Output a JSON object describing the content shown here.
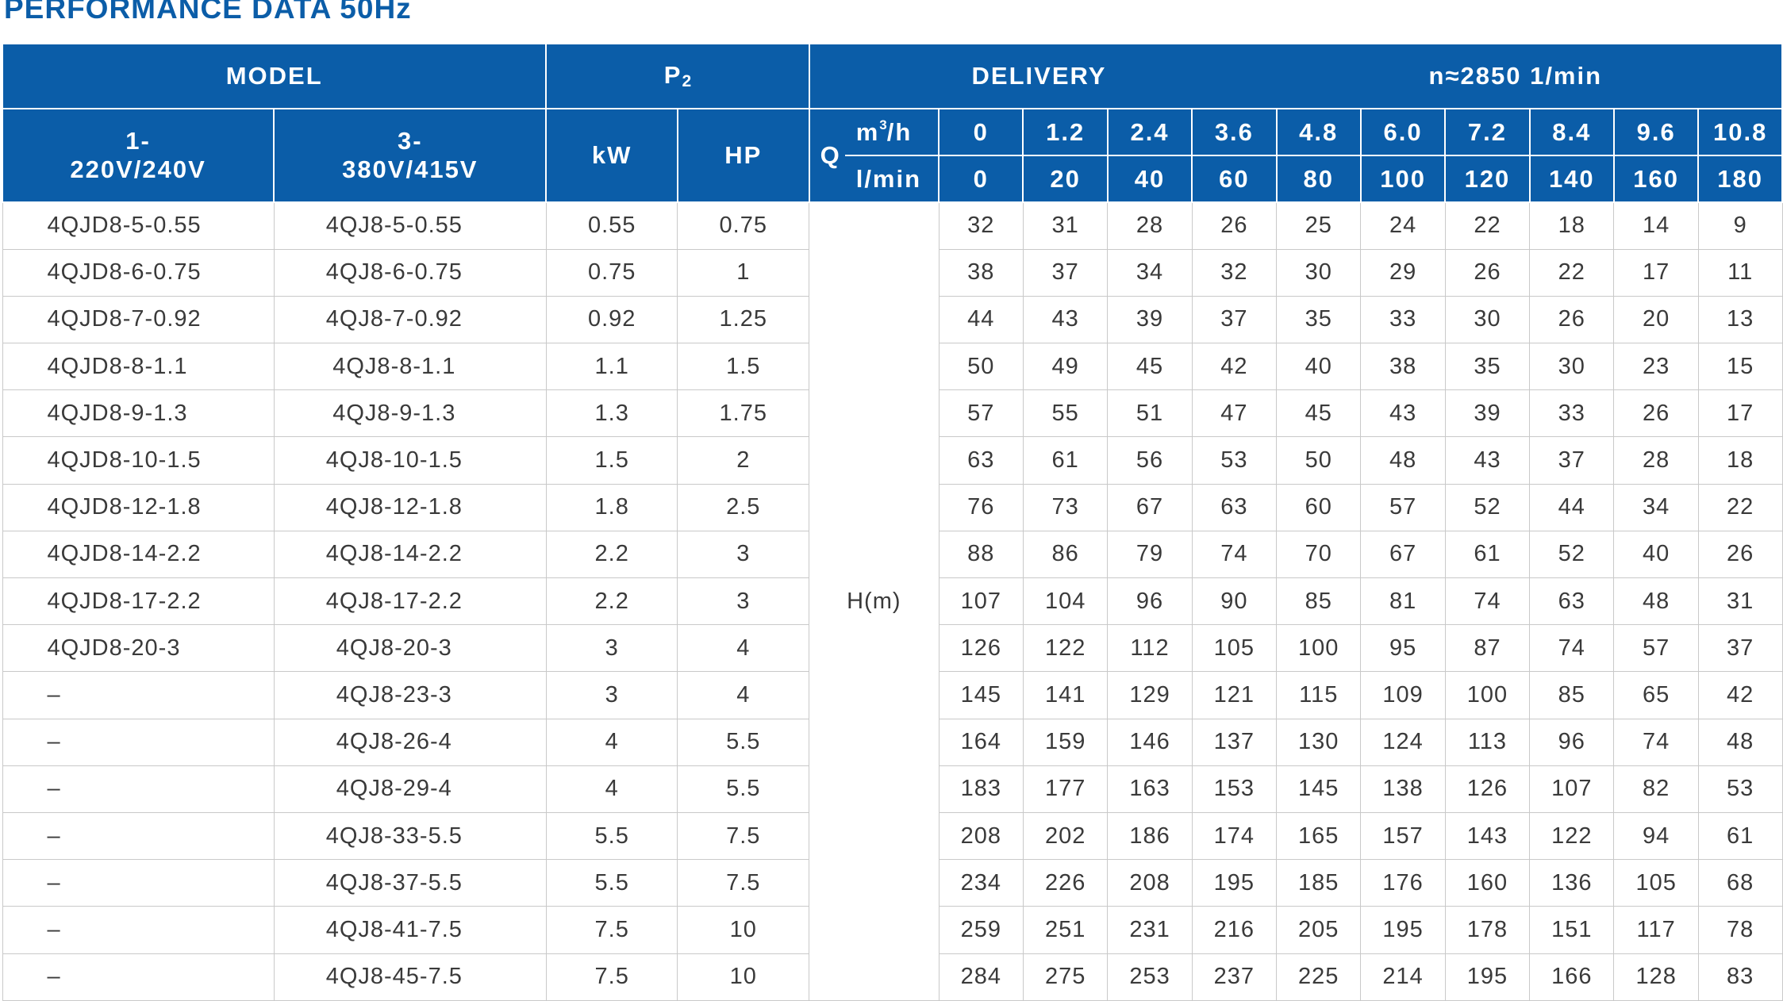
{
  "title": "PERFORMANCE DATA 50Hz",
  "header": {
    "model": "MODEL",
    "p2": "P",
    "p2_sub": "2",
    "delivery": "DELIVERY",
    "speed": "n≈2850  1/min",
    "single_phase": [
      "1-",
      "220V/240V"
    ],
    "three_phase": [
      "3-",
      "380V/415V"
    ],
    "kw": "kW",
    "hp": "HP",
    "q": "Q",
    "unit_m3h": "m",
    "unit_m3h_sup": "3",
    "unit_m3h_rest": "/h",
    "unit_lmin": "l/min",
    "flow_m3h": [
      "0",
      "1.2",
      "2.4",
      "3.6",
      "4.8",
      "6.0",
      "7.2",
      "8.4",
      "9.6",
      "10.8"
    ],
    "flow_lmin": [
      "0",
      "20",
      "40",
      "60",
      "80",
      "100",
      "120",
      "140",
      "160",
      "180"
    ]
  },
  "head_label": "H(m)",
  "rows": [
    {
      "m1": "4QJD8-5-0.55",
      "m3": "4QJ8-5-0.55",
      "kw": "0.55",
      "hp": "0.75",
      "h": [
        "32",
        "31",
        "28",
        "26",
        "25",
        "24",
        "22",
        "18",
        "14",
        "9"
      ]
    },
    {
      "m1": "4QJD8-6-0.75",
      "m3": "4QJ8-6-0.75",
      "kw": "0.75",
      "hp": "1",
      "h": [
        "38",
        "37",
        "34",
        "32",
        "30",
        "29",
        "26",
        "22",
        "17",
        "11"
      ]
    },
    {
      "m1": "4QJD8-7-0.92",
      "m3": "4QJ8-7-0.92",
      "kw": "0.92",
      "hp": "1.25",
      "h": [
        "44",
        "43",
        "39",
        "37",
        "35",
        "33",
        "30",
        "26",
        "20",
        "13"
      ]
    },
    {
      "m1": "4QJD8-8-1.1",
      "m3": "4QJ8-8-1.1",
      "kw": "1.1",
      "hp": "1.5",
      "h": [
        "50",
        "49",
        "45",
        "42",
        "40",
        "38",
        "35",
        "30",
        "23",
        "15"
      ]
    },
    {
      "m1": "4QJD8-9-1.3",
      "m3": "4QJ8-9-1.3",
      "kw": "1.3",
      "hp": "1.75",
      "h": [
        "57",
        "55",
        "51",
        "47",
        "45",
        "43",
        "39",
        "33",
        "26",
        "17"
      ]
    },
    {
      "m1": "4QJD8-10-1.5",
      "m3": "4QJ8-10-1.5",
      "kw": "1.5",
      "hp": "2",
      "h": [
        "63",
        "61",
        "56",
        "53",
        "50",
        "48",
        "43",
        "37",
        "28",
        "18"
      ]
    },
    {
      "m1": "4QJD8-12-1.8",
      "m3": "4QJ8-12-1.8",
      "kw": "1.8",
      "hp": "2.5",
      "h": [
        "76",
        "73",
        "67",
        "63",
        "60",
        "57",
        "52",
        "44",
        "34",
        "22"
      ]
    },
    {
      "m1": "4QJD8-14-2.2",
      "m3": "4QJ8-14-2.2",
      "kw": "2.2",
      "hp": "3",
      "h": [
        "88",
        "86",
        "79",
        "74",
        "70",
        "67",
        "61",
        "52",
        "40",
        "26"
      ]
    },
    {
      "m1": "4QJD8-17-2.2",
      "m3": "4QJ8-17-2.2",
      "kw": "2.2",
      "hp": "3",
      "h": [
        "107",
        "104",
        "96",
        "90",
        "85",
        "81",
        "74",
        "63",
        "48",
        "31"
      ]
    },
    {
      "m1": "4QJD8-20-3",
      "m3": "4QJ8-20-3",
      "kw": "3",
      "hp": "4",
      "h": [
        "126",
        "122",
        "112",
        "105",
        "100",
        "95",
        "87",
        "74",
        "57",
        "37"
      ]
    },
    {
      "m1": "–",
      "m3": "4QJ8-23-3",
      "kw": "3",
      "hp": "4",
      "h": [
        "145",
        "141",
        "129",
        "121",
        "115",
        "109",
        "100",
        "85",
        "65",
        "42"
      ]
    },
    {
      "m1": "–",
      "m3": "4QJ8-26-4",
      "kw": "4",
      "hp": "5.5",
      "h": [
        "164",
        "159",
        "146",
        "137",
        "130",
        "124",
        "113",
        "96",
        "74",
        "48"
      ]
    },
    {
      "m1": "–",
      "m3": "4QJ8-29-4",
      "kw": "4",
      "hp": "5.5",
      "h": [
        "183",
        "177",
        "163",
        "153",
        "145",
        "138",
        "126",
        "107",
        "82",
        "53"
      ]
    },
    {
      "m1": "–",
      "m3": "4QJ8-33-5.5",
      "kw": "5.5",
      "hp": "7.5",
      "h": [
        "208",
        "202",
        "186",
        "174",
        "165",
        "157",
        "143",
        "122",
        "94",
        "61"
      ]
    },
    {
      "m1": "–",
      "m3": "4QJ8-37-5.5",
      "kw": "5.5",
      "hp": "7.5",
      "h": [
        "234",
        "226",
        "208",
        "195",
        "185",
        "176",
        "160",
        "136",
        "105",
        "68"
      ]
    },
    {
      "m1": "–",
      "m3": "4QJ8-41-7.5",
      "kw": "7.5",
      "hp": "10",
      "h": [
        "259",
        "251",
        "231",
        "216",
        "205",
        "195",
        "178",
        "151",
        "117",
        "78"
      ]
    },
    {
      "m1": "–",
      "m3": "4QJ8-45-7.5",
      "kw": "7.5",
      "hp": "10",
      "h": [
        "284",
        "275",
        "253",
        "237",
        "225",
        "214",
        "195",
        "166",
        "128",
        "83"
      ]
    }
  ],
  "colors": {
    "header_bg": "#0b5da8",
    "title": "#0b5da8",
    "grid": "#c9c9c9"
  }
}
